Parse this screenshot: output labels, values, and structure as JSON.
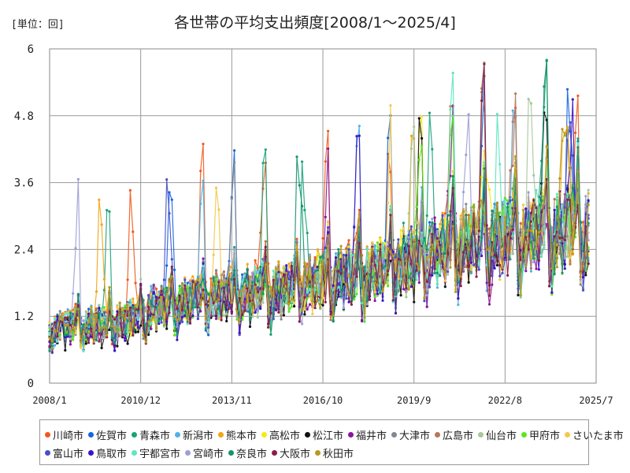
{
  "unit_label": "[単位：回]",
  "chart_data": {
    "type": "line",
    "title": "各世帯の平均支出頻度[2008/1～2025/4]",
    "xlabel": "",
    "ylabel": "",
    "x_tick_labels": [
      "2008/1",
      "2010/12",
      "2013/11",
      "2016/10",
      "2019/9",
      "2022/8",
      "2025/7"
    ],
    "x_range": [
      "2008/1",
      "2025/7"
    ],
    "y_ticks": [
      0,
      1.2,
      2.4,
      3.6,
      4.8,
      6
    ],
    "y_tick_labels": [
      "0",
      "1.2",
      "2.4",
      "3.6",
      "4.8",
      "6"
    ],
    "ylim": [
      0,
      6
    ],
    "grid": true,
    "legend_position": "bottom",
    "series": [
      {
        "name": "川崎市",
        "color": "#f05a1e",
        "seed": 1,
        "peak": [
          2010.6,
          2012.9,
          2014.9,
          2016.9,
          2018.9,
          2020.9,
          2022.9,
          2024.9
        ],
        "values_annual_mean": [
          1.05,
          1.1,
          1.2,
          1.45,
          1.5,
          1.6,
          1.7,
          1.75,
          1.9,
          2.0,
          2.1,
          2.3,
          2.5,
          2.6,
          2.7,
          2.8,
          2.85,
          2.9
        ]
      },
      {
        "name": "佐賀市",
        "color": "#1565e0",
        "seed": 2,
        "peak": [
          2011.9,
          2013.9,
          2018.9,
          2021.9,
          2024.6
        ],
        "values_annual_mean": [
          1.0,
          1.05,
          1.15,
          1.4,
          1.5,
          1.55,
          1.65,
          1.7,
          1.85,
          2.0,
          2.1,
          2.3,
          2.45,
          2.55,
          2.7,
          2.8,
          2.85,
          2.9
        ]
      },
      {
        "name": "青森市",
        "color": "#1aa37a",
        "seed": 3,
        "peak": [
          2009.9,
          2014.9,
          2016.1,
          2020.2,
          2023.9
        ],
        "values_annual_mean": [
          1.0,
          1.05,
          1.15,
          1.35,
          1.45,
          1.55,
          1.65,
          1.7,
          1.85,
          1.95,
          2.05,
          2.25,
          2.45,
          2.55,
          2.65,
          2.75,
          2.8,
          2.85
        ]
      },
      {
        "name": "新潟市",
        "color": "#4fb3e8",
        "seed": 4,
        "peak": [
          2012.9,
          2017.9,
          2022.9
        ],
        "values_annual_mean": [
          1.0,
          1.05,
          1.15,
          1.4,
          1.45,
          1.55,
          1.65,
          1.7,
          1.8,
          1.95,
          2.05,
          2.25,
          2.4,
          2.5,
          2.65,
          2.75,
          2.8,
          2.85
        ]
      },
      {
        "name": "熊本市",
        "color": "#f2a516",
        "seed": 5,
        "peak": [
          2009.6,
          2019.6,
          2024.5
        ],
        "values_annual_mean": [
          1.05,
          1.1,
          1.2,
          1.4,
          1.5,
          1.55,
          1.65,
          1.7,
          1.85,
          1.95,
          2.05,
          2.25,
          2.45,
          2.55,
          2.65,
          2.75,
          2.8,
          2.85
        ]
      },
      {
        "name": "高松市",
        "color": "#f5ea14",
        "seed": 6,
        "peak": [
          2019.9,
          2022.0
        ],
        "values_annual_mean": [
          1.0,
          1.05,
          1.1,
          1.35,
          1.45,
          1.5,
          1.6,
          1.65,
          1.8,
          1.9,
          2.0,
          2.2,
          2.45,
          2.5,
          2.6,
          2.7,
          2.75,
          2.8
        ]
      },
      {
        "name": "松江市",
        "color": "#111111",
        "seed": 7,
        "peak": [
          2019.9,
          2023.9
        ],
        "values_annual_mean": [
          0.85,
          0.9,
          1.0,
          1.25,
          1.35,
          1.45,
          1.5,
          1.6,
          1.7,
          1.8,
          1.85,
          2.0,
          2.3,
          2.4,
          2.5,
          2.6,
          2.7,
          2.75
        ]
      },
      {
        "name": "福井市",
        "color": "#8a169e",
        "seed": 8,
        "peak": [
          2016.9,
          2020.9
        ],
        "values_annual_mean": [
          0.95,
          1.0,
          1.1,
          1.3,
          1.4,
          1.45,
          1.55,
          1.6,
          1.7,
          1.8,
          1.9,
          2.05,
          2.3,
          2.4,
          2.5,
          2.55,
          2.6,
          2.65
        ]
      },
      {
        "name": "大津市",
        "color": "#808a92",
        "seed": 9,
        "peak": [
          2013.9,
          2021.9
        ],
        "values_annual_mean": [
          1.0,
          1.05,
          1.15,
          1.35,
          1.45,
          1.55,
          1.6,
          1.65,
          1.8,
          1.9,
          2.0,
          2.2,
          2.4,
          2.5,
          2.6,
          2.7,
          2.75,
          2.8
        ]
      },
      {
        "name": "広島市",
        "color": "#b5775a",
        "seed": 10,
        "peak": [
          2021.9,
          2022.9
        ],
        "values_annual_mean": [
          1.0,
          1.05,
          1.15,
          1.35,
          1.45,
          1.55,
          1.6,
          1.7,
          1.8,
          1.9,
          2.0,
          2.2,
          2.4,
          2.55,
          2.65,
          2.75,
          2.8,
          2.85
        ]
      },
      {
        "name": "仙台市",
        "color": "#a8c79a",
        "seed": 11,
        "peak": [
          2019.6,
          2023.4
        ],
        "values_annual_mean": [
          1.0,
          1.05,
          1.15,
          1.35,
          1.45,
          1.5,
          1.6,
          1.65,
          1.8,
          1.9,
          2.0,
          2.2,
          2.4,
          2.5,
          2.6,
          2.7,
          2.75,
          2.8
        ]
      },
      {
        "name": "甲府市",
        "color": "#5ce61e",
        "seed": 12,
        "peak": [
          2019.9,
          2020.9
        ],
        "values_annual_mean": [
          1.0,
          1.05,
          1.15,
          1.35,
          1.45,
          1.55,
          1.6,
          1.7,
          1.8,
          1.9,
          2.0,
          2.2,
          2.45,
          2.55,
          2.65,
          2.75,
          2.8,
          2.85
        ]
      },
      {
        "name": "さいたま市",
        "color": "#f2c94c",
        "seed": 13,
        "peak": [
          2013.4,
          2018.9
        ],
        "values_annual_mean": [
          1.0,
          1.05,
          1.15,
          1.35,
          1.45,
          1.55,
          1.6,
          1.7,
          1.8,
          1.9,
          2.0,
          2.2,
          2.4,
          2.5,
          2.6,
          2.7,
          2.75,
          2.8
        ]
      },
      {
        "name": "富山市",
        "color": "#4a4fc9",
        "seed": 14,
        "peak": [
          2011.8,
          2024.6
        ],
        "values_annual_mean": [
          1.0,
          1.05,
          1.15,
          1.35,
          1.45,
          1.5,
          1.6,
          1.65,
          1.8,
          1.9,
          2.0,
          2.2,
          2.4,
          2.5,
          2.6,
          2.7,
          2.75,
          2.8
        ]
      },
      {
        "name": "鳥取市",
        "color": "#3d14c4",
        "seed": 15,
        "peak": [
          2017.9,
          2024.7
        ],
        "values_annual_mean": [
          0.95,
          1.0,
          1.1,
          1.3,
          1.4,
          1.5,
          1.55,
          1.6,
          1.75,
          1.85,
          1.95,
          2.15,
          2.35,
          2.45,
          2.55,
          2.65,
          2.7,
          2.75
        ]
      },
      {
        "name": "宇都宮市",
        "color": "#5ee6c0",
        "seed": 16,
        "peak": [
          2020.9,
          2022.4
        ],
        "values_annual_mean": [
          1.0,
          1.05,
          1.15,
          1.35,
          1.45,
          1.55,
          1.6,
          1.7,
          1.8,
          1.9,
          2.0,
          2.2,
          2.4,
          2.5,
          2.6,
          2.7,
          2.75,
          2.8
        ]
      },
      {
        "name": "宮崎市",
        "color": "#9e9ed6",
        "seed": 17,
        "peak": [
          2008.9,
          2021.4
        ],
        "values_annual_mean": [
          1.0,
          1.05,
          1.15,
          1.35,
          1.45,
          1.5,
          1.6,
          1.65,
          1.8,
          1.9,
          2.0,
          2.2,
          2.4,
          2.5,
          2.6,
          2.7,
          2.75,
          2.8
        ]
      },
      {
        "name": "奈良市",
        "color": "#14946b",
        "seed": 18,
        "peak": [
          2016.0,
          2023.9
        ],
        "values_annual_mean": [
          1.0,
          1.05,
          1.15,
          1.35,
          1.45,
          1.5,
          1.6,
          1.65,
          1.8,
          1.9,
          2.0,
          2.2,
          2.4,
          2.5,
          2.6,
          2.7,
          2.75,
          2.8
        ]
      },
      {
        "name": "大阪市",
        "color": "#8a1e4a",
        "seed": 19,
        "peak": [
          2021.9
        ],
        "values_annual_mean": [
          0.95,
          1.0,
          1.1,
          1.3,
          1.4,
          1.5,
          1.55,
          1.6,
          1.75,
          1.85,
          1.95,
          2.15,
          2.35,
          2.45,
          2.55,
          2.65,
          2.7,
          2.75
        ]
      },
      {
        "name": "秋田市",
        "color": "#b89a1e",
        "seed": 20,
        "peak": [
          2024.5
        ],
        "values_annual_mean": [
          1.0,
          1.05,
          1.15,
          1.35,
          1.45,
          1.5,
          1.6,
          1.65,
          1.8,
          1.9,
          2.0,
          2.2,
          2.4,
          2.5,
          2.6,
          2.7,
          2.75,
          2.8
        ]
      }
    ]
  }
}
